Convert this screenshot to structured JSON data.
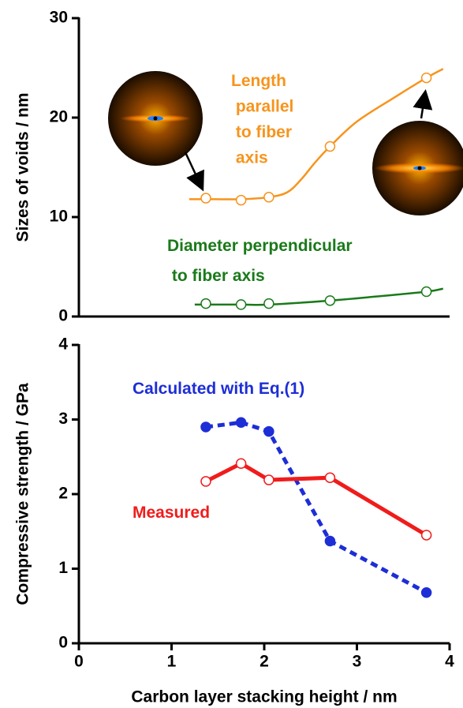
{
  "chart_data": [
    {
      "type": "line",
      "ylabel": "Sizes of voids / nm",
      "xlim": [
        0,
        4
      ],
      "ylim": [
        0,
        30
      ],
      "yticks": [
        0,
        10,
        20,
        30
      ],
      "series": [
        {
          "name": "Length parallel to fiber axis",
          "color": "#f7941d",
          "x": [
            1.37,
            1.75,
            2.05,
            2.71,
            3.75
          ],
          "values": [
            11.9,
            11.7,
            12.0,
            17.1,
            24.0
          ],
          "fit_x": [
            1.19,
            1.37,
            1.75,
            2.05,
            2.25,
            2.4,
            2.55,
            2.71,
            3.0,
            3.4,
            3.75,
            3.93
          ],
          "fit_values": [
            11.8,
            11.8,
            11.8,
            12.0,
            12.5,
            13.8,
            15.5,
            17.1,
            19.6,
            22.0,
            24.0,
            24.9
          ]
        },
        {
          "name": "Diameter perpendicular to fiber axis",
          "color": "#1a7a1a",
          "x": [
            1.37,
            1.75,
            2.05,
            2.71,
            3.75
          ],
          "values": [
            1.3,
            1.2,
            1.3,
            1.6,
            2.5
          ],
          "fit_x": [
            1.25,
            1.75,
            2.05,
            2.71,
            3.2,
            3.75,
            3.93
          ],
          "fit_values": [
            1.2,
            1.2,
            1.2,
            1.6,
            2.0,
            2.5,
            2.8
          ]
        }
      ]
    },
    {
      "type": "line",
      "xlabel": "Carbon layer stacking height / nm",
      "ylabel": "Compressive strength / GPa",
      "xlim": [
        0,
        4
      ],
      "xticks": [
        0,
        1,
        2,
        3,
        4
      ],
      "ylim": [
        0,
        4
      ],
      "yticks": [
        0,
        1,
        2,
        3,
        4
      ],
      "series": [
        {
          "name": "Calculated with Eq.(1)",
          "color": "#1d2ed6",
          "dashed": true,
          "filled": true,
          "x": [
            1.37,
            1.75,
            2.05,
            2.71,
            3.75
          ],
          "values": [
            2.9,
            2.96,
            2.84,
            1.37,
            0.68
          ]
        },
        {
          "name": "Measured",
          "color": "#f01c1c",
          "dashed": false,
          "filled": false,
          "x": [
            1.37,
            1.75,
            2.05,
            2.71,
            3.75
          ],
          "values": [
            2.17,
            2.41,
            2.19,
            2.22,
            1.45
          ]
        }
      ]
    }
  ]
}
